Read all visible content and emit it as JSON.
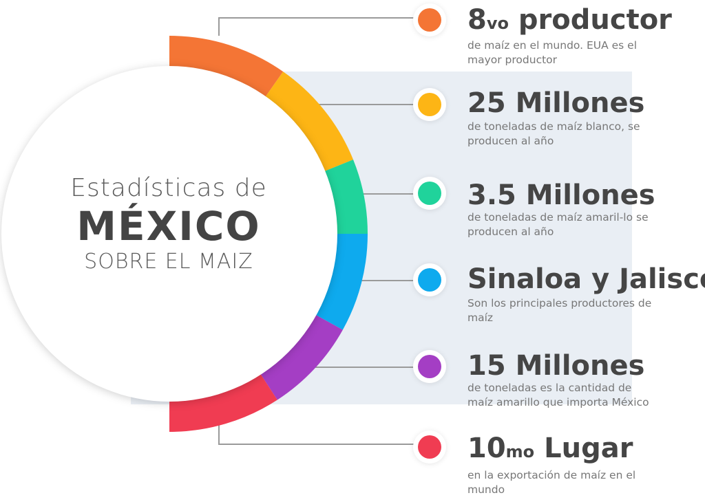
{
  "title": {
    "line1": "Estadísticas de",
    "line2": "MÉXICO",
    "line3": "SOBRE EL MAIZ"
  },
  "colors": {
    "orange": "#f47535",
    "yellow": "#fdb515",
    "green": "#20d39b",
    "blue": "#0eaaee",
    "purple": "#a43ec4",
    "red": "#f03c52"
  },
  "items": [
    {
      "stat_num": "8",
      "stat_sup": "vo",
      "stat_text": " productor",
      "desc": "de maíz en el mundo. EUA es el mayor productor",
      "color": "#f47535"
    },
    {
      "stat_num": "25 Millones",
      "stat_sup": "",
      "stat_text": "",
      "desc": "de toneladas de maíz blanco, se producen al año",
      "color": "#fdb515"
    },
    {
      "stat_num": "3.5 Millones",
      "stat_sup": "",
      "stat_text": "",
      "desc": "de toneladas de maíz amaril-lo se producen al año",
      "color": "#20d39b"
    },
    {
      "stat_num": "Sinaloa y Jalisco",
      "stat_sup": "",
      "stat_text": "",
      "desc": "Son los principales productores de maíz",
      "color": "#0eaaee"
    },
    {
      "stat_num": "15 Millones",
      "stat_sup": "",
      "stat_text": "",
      "desc": "de toneladas es la cantidad de maíz amarillo que importa México",
      "color": "#a43ec4"
    },
    {
      "stat_num": "10",
      "stat_sup": "mo",
      "stat_text": " Lugar",
      "desc": "en la exportación de maíz en el mundo",
      "color": "#f03c52"
    }
  ]
}
